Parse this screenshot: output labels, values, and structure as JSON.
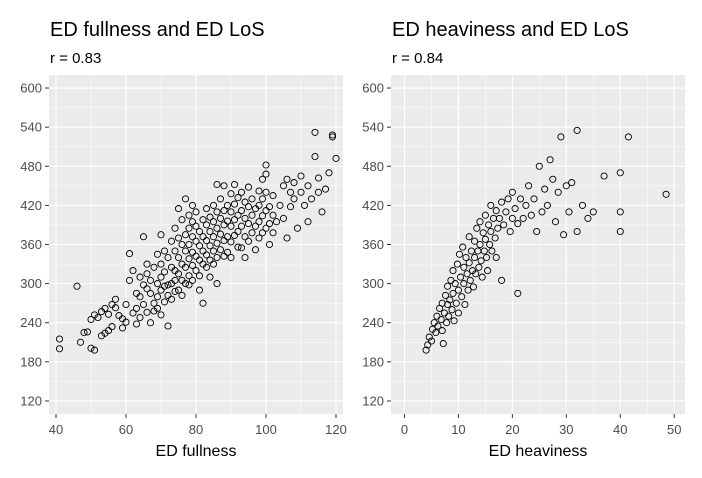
{
  "colors": {
    "panel_background": "#ebebeb",
    "grid_major": "#ffffff",
    "point_stroke": "#000000",
    "tick_text": "#4d4d4d"
  },
  "chart_data": [
    {
      "type": "scatter",
      "title": "ED fullness and ED LoS",
      "subtitle": "r = 0.83",
      "xlabel": "ED fullness",
      "ylabel": "",
      "xlim": [
        38,
        122
      ],
      "ylim": [
        100,
        620
      ],
      "xticks": [
        40,
        60,
        80,
        100,
        120
      ],
      "yticks": [
        120,
        180,
        240,
        300,
        360,
        420,
        480,
        540,
        600
      ],
      "grid": true,
      "marker": "open-circle",
      "points": [
        [
          41,
          215
        ],
        [
          41,
          200
        ],
        [
          46,
          296
        ],
        [
          47,
          210
        ],
        [
          48,
          225
        ],
        [
          49,
          226
        ],
        [
          50,
          245
        ],
        [
          50,
          201
        ],
        [
          51,
          198
        ],
        [
          51,
          252
        ],
        [
          52,
          248
        ],
        [
          53,
          257
        ],
        [
          53,
          220
        ],
        [
          54,
          224
        ],
        [
          54,
          262
        ],
        [
          55,
          228
        ],
        [
          55,
          253
        ],
        [
          56,
          268
        ],
        [
          56,
          234
        ],
        [
          57,
          276
        ],
        [
          57,
          263
        ],
        [
          58,
          251
        ],
        [
          59,
          246
        ],
        [
          59,
          232
        ],
        [
          60,
          268
        ],
        [
          60,
          241
        ],
        [
          61,
          305
        ],
        [
          61,
          346
        ],
        [
          62,
          320
        ],
        [
          62,
          255
        ],
        [
          63,
          238
        ],
        [
          63,
          285
        ],
        [
          63,
          262
        ],
        [
          64,
          310
        ],
        [
          64,
          280
        ],
        [
          64,
          248
        ],
        [
          65,
          372
        ],
        [
          65,
          298
        ],
        [
          65,
          268
        ],
        [
          66,
          330
        ],
        [
          66,
          315
        ],
        [
          66,
          292
        ],
        [
          66,
          256
        ],
        [
          67,
          240
        ],
        [
          67,
          285
        ],
        [
          67,
          305
        ],
        [
          68,
          325
        ],
        [
          68,
          270
        ],
        [
          68,
          258
        ],
        [
          69,
          345
        ],
        [
          69,
          300
        ],
        [
          69,
          280
        ],
        [
          69,
          262
        ],
        [
          70,
          375
        ],
        [
          70,
          330
        ],
        [
          70,
          310
        ],
        [
          70,
          290
        ],
        [
          70,
          252
        ],
        [
          71,
          350
        ],
        [
          71,
          318
        ],
        [
          71,
          296
        ],
        [
          71,
          272
        ],
        [
          72,
          340
        ],
        [
          72,
          298
        ],
        [
          72,
          282
        ],
        [
          72,
          235
        ],
        [
          73,
          365
        ],
        [
          73,
          325
        ],
        [
          73,
          300
        ],
        [
          73,
          276
        ],
        [
          74,
          385
        ],
        [
          74,
          350
        ],
        [
          74,
          320
        ],
        [
          74,
          305
        ],
        [
          74,
          288
        ],
        [
          75,
          415
        ],
        [
          75,
          370
        ],
        [
          75,
          340
        ],
        [
          75,
          315
        ],
        [
          75,
          290
        ],
        [
          76,
          398
        ],
        [
          76,
          360
        ],
        [
          76,
          330
        ],
        [
          76,
          305
        ],
        [
          76,
          282
        ],
        [
          77,
          430
        ],
        [
          77,
          375
        ],
        [
          77,
          350
        ],
        [
          77,
          325
        ],
        [
          77,
          300
        ],
        [
          78,
          405
        ],
        [
          78,
          385
        ],
        [
          78,
          360
        ],
        [
          78,
          338
        ],
        [
          78,
          312
        ],
        [
          78,
          298
        ],
        [
          79,
          420
        ],
        [
          79,
          395
        ],
        [
          79,
          372
        ],
        [
          79,
          348
        ],
        [
          79,
          328
        ],
        [
          79,
          305
        ],
        [
          80,
          410
        ],
        [
          80,
          388
        ],
        [
          80,
          365
        ],
        [
          80,
          342
        ],
        [
          80,
          320
        ],
        [
          81,
          380
        ],
        [
          81,
          358
        ],
        [
          81,
          336
        ],
        [
          81,
          312
        ],
        [
          81,
          290
        ],
        [
          82,
          398
        ],
        [
          82,
          372
        ],
        [
          82,
          350
        ],
        [
          82,
          330
        ],
        [
          82,
          270
        ],
        [
          83,
          415
        ],
        [
          83,
          390
        ],
        [
          83,
          366
        ],
        [
          83,
          344
        ],
        [
          83,
          325
        ],
        [
          84,
          402
        ],
        [
          84,
          380
        ],
        [
          84,
          358
        ],
        [
          84,
          336
        ],
        [
          84,
          310
        ],
        [
          85,
          420
        ],
        [
          85,
          395
        ],
        [
          85,
          372
        ],
        [
          85,
          350
        ],
        [
          85,
          330
        ],
        [
          86,
          452
        ],
        [
          86,
          410
        ],
        [
          86,
          385
        ],
        [
          86,
          362
        ],
        [
          86,
          340
        ],
        [
          86,
          300
        ],
        [
          87,
          430
        ],
        [
          87,
          400
        ],
        [
          87,
          376
        ],
        [
          87,
          352
        ],
        [
          88,
          450
        ],
        [
          88,
          412
        ],
        [
          88,
          390
        ],
        [
          88,
          366
        ],
        [
          88,
          342
        ],
        [
          89,
          420
        ],
        [
          89,
          396
        ],
        [
          89,
          372
        ],
        [
          89,
          348
        ],
        [
          90,
          438
        ],
        [
          90,
          410
        ],
        [
          90,
          388
        ],
        [
          90,
          364
        ],
        [
          90,
          340
        ],
        [
          91,
          452
        ],
        [
          91,
          422
        ],
        [
          91,
          398
        ],
        [
          91,
          374
        ],
        [
          92,
          432
        ],
        [
          92,
          405
        ],
        [
          92,
          380
        ],
        [
          92,
          356
        ],
        [
          93,
          440
        ],
        [
          93,
          412
        ],
        [
          93,
          388
        ],
        [
          93,
          355
        ],
        [
          94,
          425
        ],
        [
          94,
          400
        ],
        [
          94,
          372
        ],
        [
          94,
          340
        ],
        [
          95,
          448
        ],
        [
          95,
          418
        ],
        [
          95,
          392
        ],
        [
          95,
          365
        ],
        [
          96,
          430
        ],
        [
          96,
          405
        ],
        [
          96,
          378
        ],
        [
          97,
          415
        ],
        [
          97,
          388
        ],
        [
          97,
          352
        ],
        [
          98,
          442
        ],
        [
          98,
          420
        ],
        [
          98,
          395
        ],
        [
          98,
          370
        ],
        [
          99,
          460
        ],
        [
          99,
          430
        ],
        [
          99,
          404
        ],
        [
          99,
          378
        ],
        [
          100,
          482
        ],
        [
          100,
          468
        ],
        [
          100,
          440
        ],
        [
          100,
          412
        ],
        [
          100,
          385
        ],
        [
          101,
          418
        ],
        [
          101,
          392
        ],
        [
          101,
          360
        ],
        [
          102,
          435
        ],
        [
          102,
          405
        ],
        [
          102,
          378
        ],
        [
          103,
          395
        ],
        [
          104,
          420
        ],
        [
          105,
          450
        ],
        [
          105,
          400
        ],
        [
          106,
          460
        ],
        [
          106,
          370
        ],
        [
          107,
          440
        ],
        [
          107,
          418
        ],
        [
          108,
          455
        ],
        [
          108,
          430
        ],
        [
          109,
          385
        ],
        [
          110,
          465
        ],
        [
          110,
          440
        ],
        [
          111,
          420
        ],
        [
          112,
          450
        ],
        [
          112,
          395
        ],
        [
          113,
          430
        ],
        [
          114,
          532
        ],
        [
          114,
          495
        ],
        [
          115,
          462
        ],
        [
          115,
          440
        ],
        [
          116,
          410
        ],
        [
          117,
          445
        ],
        [
          118,
          470
        ],
        [
          119,
          525
        ],
        [
          119,
          528
        ],
        [
          120,
          492
        ]
      ]
    },
    {
      "type": "scatter",
      "title": "ED heaviness and ED LoS",
      "subtitle": "r = 0.84",
      "xlabel": "ED heaviness",
      "ylabel": "",
      "xlim": [
        -2.5,
        52
      ],
      "ylim": [
        100,
        620
      ],
      "xticks": [
        0,
        10,
        20,
        30,
        40,
        50
      ],
      "yticks": [
        120,
        180,
        240,
        300,
        360,
        420,
        480,
        540,
        600
      ],
      "grid": true,
      "marker": "open-circle",
      "points": [
        [
          4.0,
          198
        ],
        [
          4.3,
          206
        ],
        [
          4.6,
          218
        ],
        [
          5.0,
          212
        ],
        [
          5.2,
          230
        ],
        [
          5.5,
          240
        ],
        [
          5.8,
          225
        ],
        [
          6.0,
          250
        ],
        [
          6.2,
          235
        ],
        [
          6.5,
          262
        ],
        [
          6.8,
          245
        ],
        [
          7.0,
          270
        ],
        [
          7.0,
          228
        ],
        [
          7.2,
          208
        ],
        [
          7.4,
          255
        ],
        [
          7.6,
          282
        ],
        [
          7.8,
          240
        ],
        [
          8.0,
          268
        ],
        [
          8.0,
          296
        ],
        [
          8.2,
          250
        ],
        [
          8.4,
          275
        ],
        [
          8.6,
          305
        ],
        [
          8.8,
          260
        ],
        [
          9.0,
          285
        ],
        [
          9.0,
          320
        ],
        [
          9.2,
          243
        ],
        [
          9.4,
          300
        ],
        [
          9.6,
          270
        ],
        [
          9.8,
          330
        ],
        [
          10.0,
          290
        ],
        [
          10.0,
          255
        ],
        [
          10.2,
          345
        ],
        [
          10.4,
          310
        ],
        [
          10.6,
          280
        ],
        [
          10.8,
          356
        ],
        [
          11.0,
          300
        ],
        [
          11.0,
          325
        ],
        [
          11.2,
          268
        ],
        [
          11.4,
          340
        ],
        [
          11.6,
          315
        ],
        [
          11.8,
          290
        ],
        [
          12.0,
          372
        ],
        [
          12.0,
          332
        ],
        [
          12.2,
          305
        ],
        [
          12.4,
          350
        ],
        [
          12.6,
          320
        ],
        [
          12.8,
          295
        ],
        [
          13.0,
          365
        ],
        [
          13.0,
          340
        ],
        [
          13.2,
          315
        ],
        [
          13.4,
          385
        ],
        [
          13.6,
          350
        ],
        [
          13.8,
          325
        ],
        [
          14.0,
          395
        ],
        [
          14.0,
          360
        ],
        [
          14.2,
          335
        ],
        [
          14.4,
          310
        ],
        [
          14.6,
          378
        ],
        [
          14.8,
          350
        ],
        [
          15.0,
          405
        ],
        [
          15.0,
          368
        ],
        [
          15.2,
          340
        ],
        [
          15.4,
          320
        ],
        [
          15.6,
          390
        ],
        [
          15.8,
          360
        ],
        [
          16.0,
          420
        ],
        [
          16.0,
          380
        ],
        [
          16.2,
          350
        ],
        [
          16.5,
          400
        ],
        [
          16.8,
          370
        ],
        [
          17.0,
          412
        ],
        [
          17.0,
          340
        ],
        [
          17.3,
          385
        ],
        [
          17.6,
          400
        ],
        [
          18.0,
          425
        ],
        [
          18.0,
          305
        ],
        [
          18.4,
          390
        ],
        [
          18.8,
          410
        ],
        [
          19.2,
          430
        ],
        [
          19.6,
          380
        ],
        [
          20.0,
          440
        ],
        [
          20.0,
          400
        ],
        [
          20.5,
          415
        ],
        [
          21.0,
          392
        ],
        [
          21.0,
          285
        ],
        [
          21.5,
          430
        ],
        [
          22.0,
          400
        ],
        [
          22.5,
          420
        ],
        [
          23.0,
          450
        ],
        [
          23.5,
          405
        ],
        [
          24.0,
          430
        ],
        [
          24.5,
          380
        ],
        [
          25.0,
          480
        ],
        [
          25.5,
          410
        ],
        [
          26.0,
          445
        ],
        [
          26.5,
          420
        ],
        [
          27.0,
          490
        ],
        [
          27.5,
          460
        ],
        [
          28.0,
          395
        ],
        [
          28.5,
          440
        ],
        [
          29.0,
          525
        ],
        [
          29.5,
          375
        ],
        [
          30.0,
          450
        ],
        [
          30.5,
          410
        ],
        [
          31.0,
          455
        ],
        [
          32.0,
          535
        ],
        [
          32.0,
          380
        ],
        [
          33.0,
          420
        ],
        [
          34.0,
          400
        ],
        [
          35.0,
          410
        ],
        [
          37.0,
          465
        ],
        [
          40.0,
          470
        ],
        [
          40.0,
          410
        ],
        [
          40.0,
          380
        ],
        [
          41.5,
          525
        ],
        [
          48.5,
          437
        ]
      ]
    }
  ]
}
